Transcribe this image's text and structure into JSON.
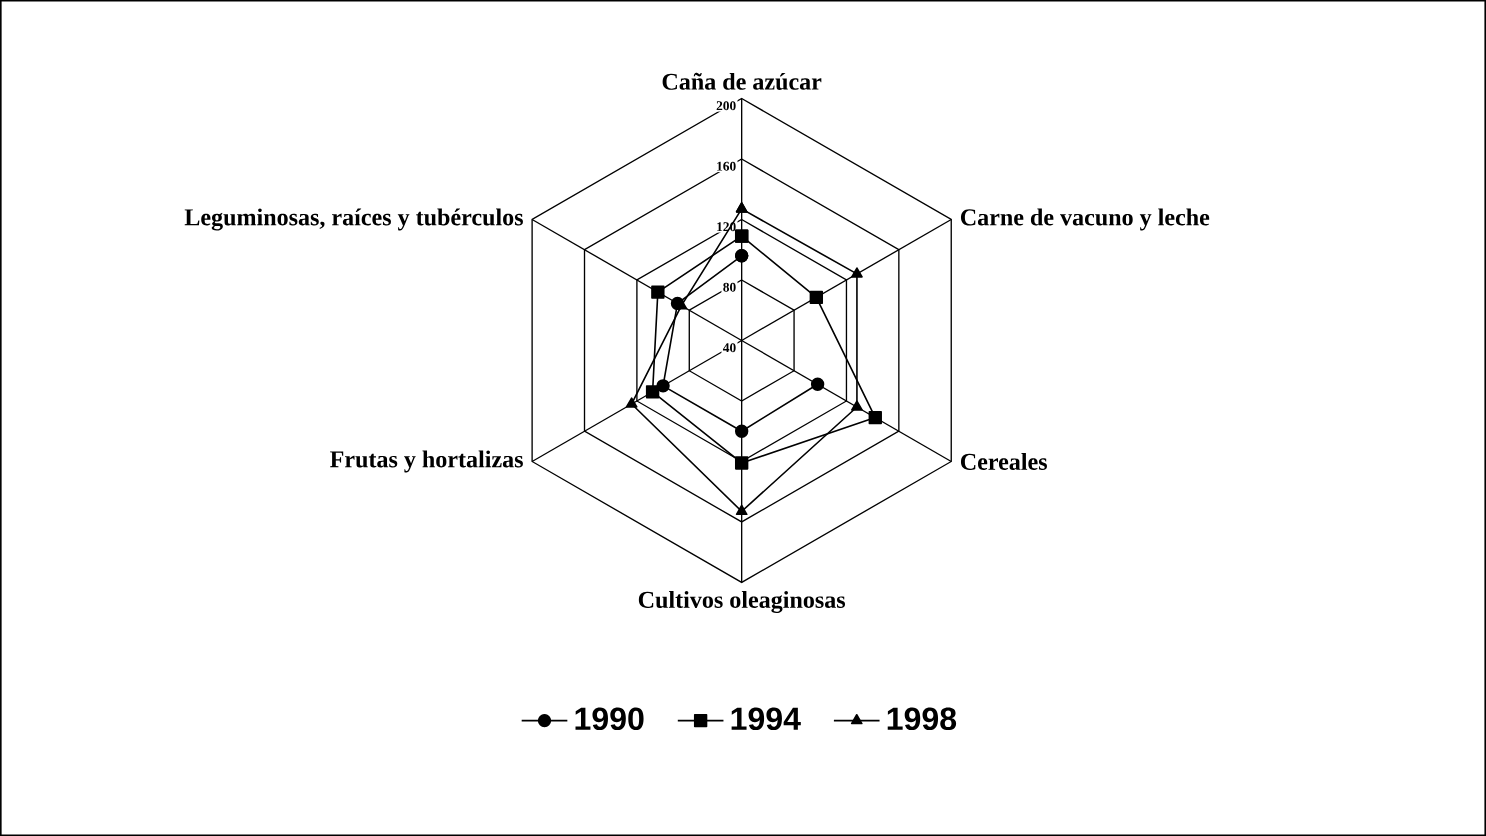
{
  "chart_data": {
    "type": "radar",
    "categories": [
      "Caña de azúcar",
      "Carne de vacuno y leche",
      "Cereales",
      "Cultivos oleaginosas",
      "Frutas y hortalizas",
      "Leguminosas, raíces y tubérculos"
    ],
    "ylim": [
      40,
      200
    ],
    "yticks": [
      40,
      80,
      120,
      160,
      200
    ],
    "series": [
      {
        "name": "1990",
        "color": "#000000",
        "marker": "circle",
        "values": [
          96,
          null,
          98,
          100,
          100,
          89
        ]
      },
      {
        "name": "1994",
        "color": "#000000",
        "marker": "square",
        "values": [
          109,
          97,
          142,
          121,
          108,
          104
        ]
      },
      {
        "name": "1998",
        "color": "#000000",
        "marker": "triangle",
        "values": [
          127,
          128,
          128,
          153,
          124,
          86
        ]
      }
    ],
    "legend": "bottom"
  }
}
